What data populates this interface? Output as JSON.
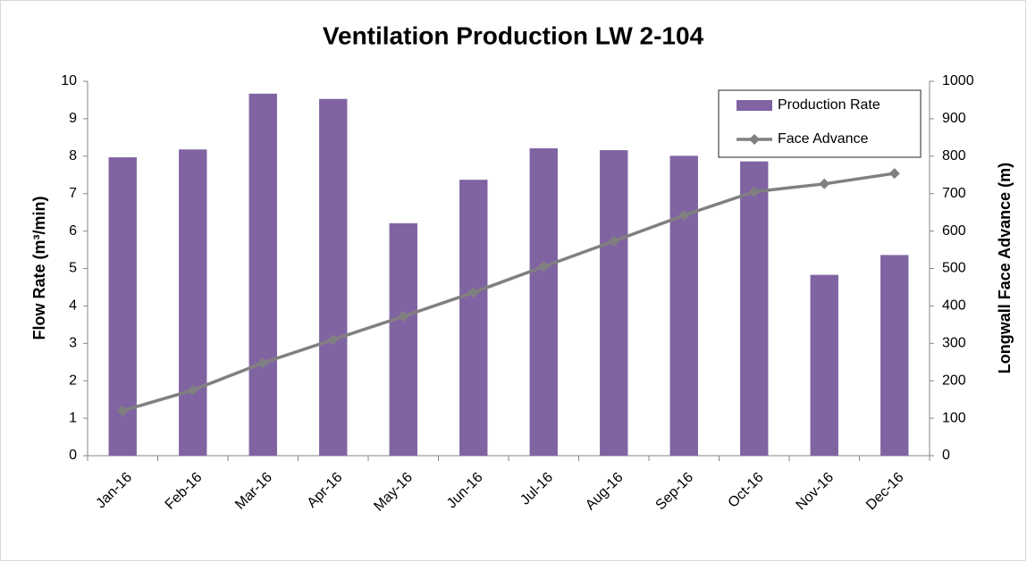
{
  "chart_data": {
    "type": "bar",
    "title": "Ventilation Production LW 2-104",
    "y_label": "Flow Rate (m³/min)",
    "y2_label": "Longwall Face Advance (m)",
    "categories": [
      "Jan-16",
      "Feb-16",
      "Mar-16",
      "Apr-16",
      "May-16",
      "Jun-16",
      "Jul-16",
      "Aug-16",
      "Sep-16",
      "Oct-16",
      "Nov-16",
      "Dec-16"
    ],
    "series": [
      {
        "name": "Production Rate",
        "type": "bar",
        "color": "#8064a2",
        "values": [
          7.97,
          8.18,
          9.67,
          9.53,
          6.21,
          7.37,
          8.21,
          8.16,
          8.01,
          7.86,
          4.83,
          5.36
        ]
      },
      {
        "name": "Face Advance",
        "type": "line",
        "axis": "y2",
        "color": "#808080",
        "values": [
          120,
          175,
          248,
          310,
          372,
          436,
          505,
          573,
          642,
          705,
          726,
          754
        ]
      }
    ],
    "ylim": [
      0,
      10
    ],
    "yticks": [
      0,
      1,
      2,
      3,
      4,
      5,
      6,
      7,
      8,
      9,
      10
    ],
    "y2lim": [
      0,
      1000
    ],
    "y2ticks": [
      0,
      100,
      200,
      300,
      400,
      500,
      600,
      700,
      800,
      900,
      1000
    ],
    "legend": "upper right",
    "grid": false
  }
}
